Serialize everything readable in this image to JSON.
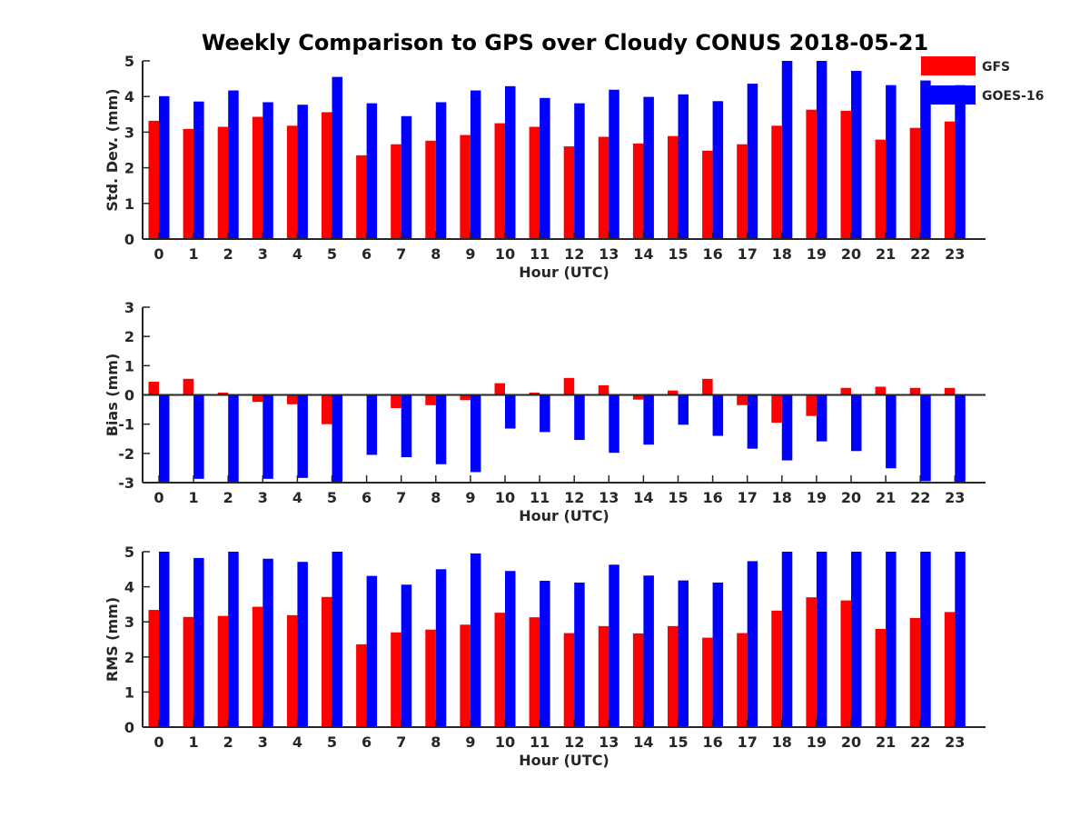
{
  "title": "Weekly Comparison to GPS over Cloudy CONUS 2018-05-21",
  "colors": {
    "GFS": "#ff0000",
    "GOES-16": "#0000ff",
    "axis": "#262626"
  },
  "chart_data": [
    {
      "type": "bar",
      "title": "Weekly Comparison to GPS over Cloudy CONUS 2018-05-21",
      "xlabel": "Hour (UTC)",
      "ylabel": "Std. Dev. (mm)",
      "ylim": [
        0,
        5
      ],
      "yticks": [
        "0",
        "1",
        "2",
        "3",
        "4",
        "5"
      ],
      "categories": [
        "0",
        "1",
        "2",
        "3",
        "4",
        "5",
        "6",
        "7",
        "8",
        "9",
        "10",
        "11",
        "12",
        "13",
        "14",
        "15",
        "16",
        "17",
        "18",
        "19",
        "20",
        "21",
        "22",
        "23"
      ],
      "legend": {
        "position": "top-right",
        "entries": [
          "GFS",
          "GOES-16"
        ]
      },
      "series": [
        {
          "name": "GFS",
          "values": [
            3.32,
            3.09,
            3.15,
            3.43,
            3.18,
            3.56,
            2.35,
            2.66,
            2.76,
            2.92,
            3.25,
            3.15,
            2.6,
            2.87,
            2.68,
            2.89,
            2.48,
            2.66,
            3.18,
            3.63,
            3.6,
            2.79,
            3.12,
            3.3
          ]
        },
        {
          "name": "GOES-16",
          "values": [
            4.01,
            3.86,
            4.17,
            3.84,
            3.77,
            4.55,
            3.81,
            3.45,
            3.84,
            4.17,
            4.29,
            3.96,
            3.81,
            4.19,
            3.99,
            4.06,
            3.87,
            4.36,
            5.0,
            5.0,
            4.72,
            4.32,
            4.45,
            4.32
          ]
        }
      ]
    },
    {
      "type": "bar",
      "xlabel": "Hour (UTC)",
      "ylabel": "Bias (mm)",
      "ylim": [
        -3,
        3
      ],
      "yticks": [
        "-3",
        "-2",
        "-1",
        "0",
        "1",
        "2",
        "3"
      ],
      "categories": [
        "0",
        "1",
        "2",
        "3",
        "4",
        "5",
        "6",
        "7",
        "8",
        "9",
        "10",
        "11",
        "12",
        "13",
        "14",
        "15",
        "16",
        "17",
        "18",
        "19",
        "20",
        "21",
        "22",
        "23"
      ],
      "series": [
        {
          "name": "GFS",
          "values": [
            0.45,
            0.55,
            0.08,
            -0.24,
            -0.32,
            -1.0,
            0.0,
            -0.45,
            -0.35,
            -0.18,
            0.4,
            0.08,
            0.58,
            0.33,
            -0.16,
            0.15,
            0.55,
            -0.35,
            -0.95,
            -0.72,
            0.24,
            0.28,
            0.24,
            0.24
          ]
        },
        {
          "name": "GOES-16",
          "values": [
            -3.0,
            -2.87,
            -3.0,
            -2.87,
            -2.84,
            -3.0,
            -2.05,
            -2.13,
            -2.37,
            -2.64,
            -1.15,
            -1.27,
            -1.54,
            -1.98,
            -1.7,
            -1.02,
            -1.4,
            -1.84,
            -2.24,
            -1.59,
            -1.92,
            -2.51,
            -2.95,
            -3.0
          ]
        }
      ]
    },
    {
      "type": "bar",
      "xlabel": "Hour (UTC)",
      "ylabel": "RMS (mm)",
      "ylim": [
        0,
        5
      ],
      "yticks": [
        "0",
        "1",
        "2",
        "3",
        "4",
        "5"
      ],
      "categories": [
        "0",
        "1",
        "2",
        "3",
        "4",
        "5",
        "6",
        "7",
        "8",
        "9",
        "10",
        "11",
        "12",
        "13",
        "14",
        "15",
        "16",
        "17",
        "18",
        "19",
        "20",
        "21",
        "22",
        "23"
      ],
      "series": [
        {
          "name": "GFS",
          "values": [
            3.34,
            3.14,
            3.17,
            3.43,
            3.19,
            3.71,
            2.36,
            2.7,
            2.78,
            2.92,
            3.26,
            3.13,
            2.68,
            2.88,
            2.67,
            2.88,
            2.55,
            2.68,
            3.32,
            3.7,
            3.61,
            2.8,
            3.11,
            3.28
          ]
        },
        {
          "name": "GOES-16",
          "values": [
            5.0,
            4.82,
            5.0,
            4.8,
            4.71,
            5.0,
            4.31,
            4.06,
            4.5,
            4.95,
            4.45,
            4.17,
            4.12,
            4.63,
            4.32,
            4.18,
            4.12,
            4.73,
            5.0,
            5.0,
            5.0,
            5.0,
            5.0,
            5.0
          ]
        }
      ]
    }
  ]
}
